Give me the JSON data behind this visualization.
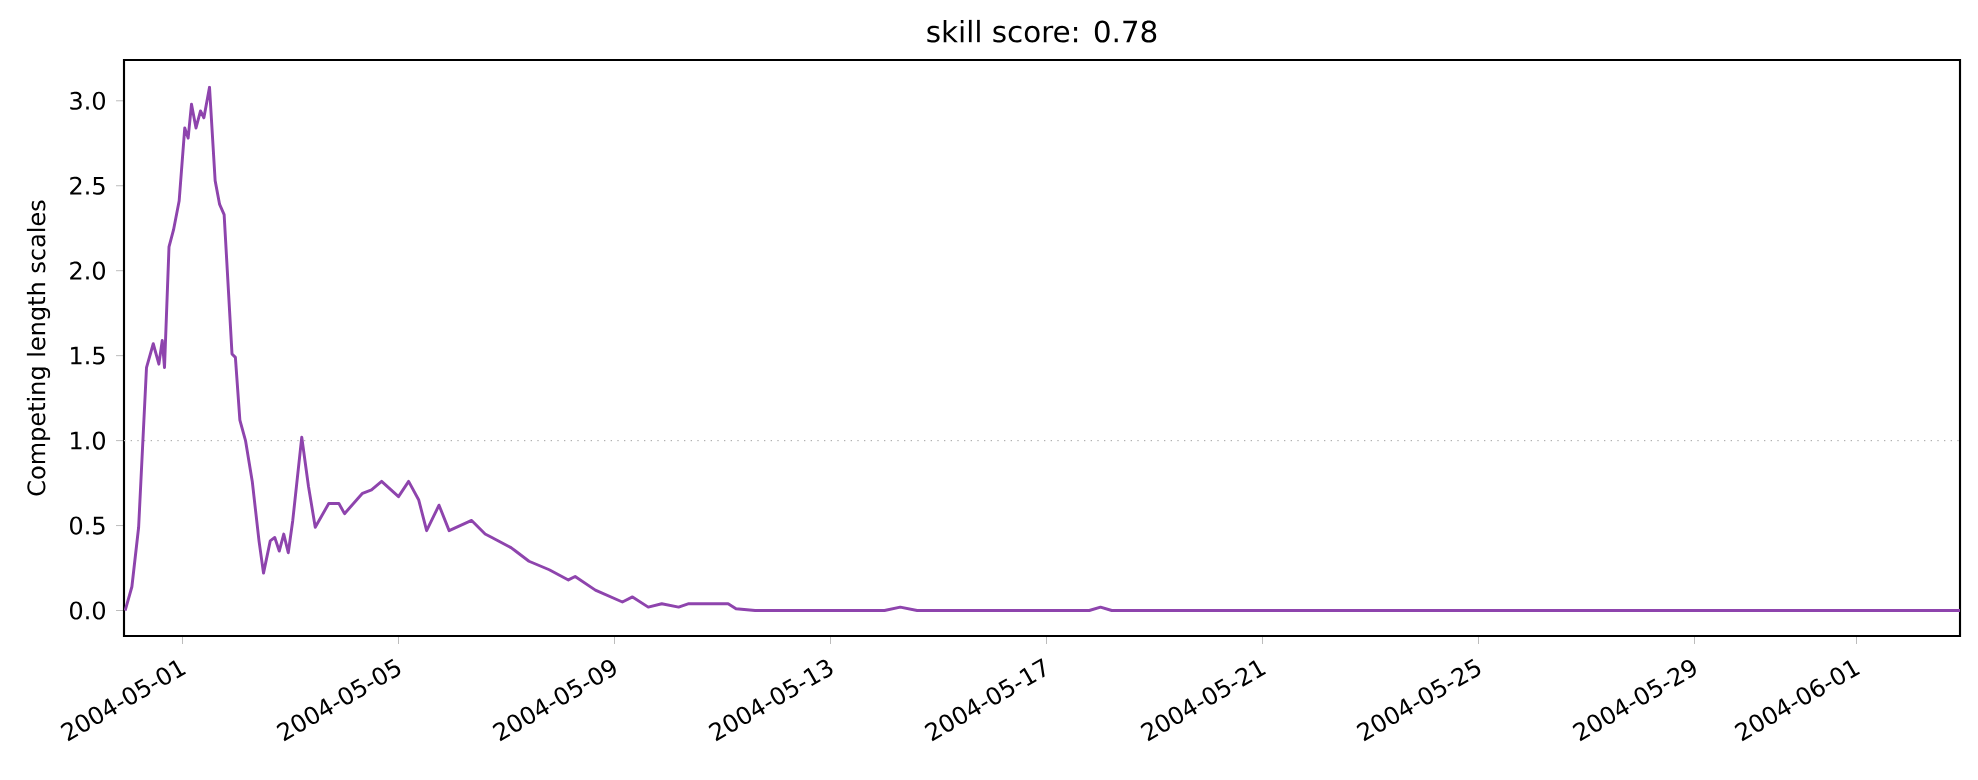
{
  "chart_data": {
    "type": "line",
    "title": "skill score: 0.78",
    "ylabel": "Competing length scales",
    "x": [
      "2004-04-29T22:30",
      "2004-04-30T01:30",
      "2004-04-30T04:30",
      "2004-04-30T08:00",
      "2004-04-30T11:00",
      "2004-04-30T13:30",
      "2004-04-30T15:00",
      "2004-04-30T16:00",
      "2004-04-30T18:00",
      "2004-04-30T20:00",
      "2004-04-30T22:30",
      "2004-05-01T01:00",
      "2004-05-01T02:30",
      "2004-05-01T04:00",
      "2004-05-01T06:00",
      "2004-05-01T08:00",
      "2004-05-01T09:30",
      "2004-05-01T12:00",
      "2004-05-01T14:30",
      "2004-05-01T16:30",
      "2004-05-01T18:30",
      "2004-05-01T22:00",
      "2004-05-01T23:30",
      "2004-05-02T01:30",
      "2004-05-02T04:00",
      "2004-05-02T07:00",
      "2004-05-02T10:00",
      "2004-05-02T12:00",
      "2004-05-02T15:00",
      "2004-05-02T17:00",
      "2004-05-02T19:00",
      "2004-05-02T21:00",
      "2004-05-02T23:00",
      "2004-05-03T01:00",
      "2004-05-03T05:00",
      "2004-05-03T08:00",
      "2004-05-03T11:00",
      "2004-05-03T17:00",
      "2004-05-03T21:30",
      "2004-05-04T00:00",
      "2004-05-04T08:00",
      "2004-05-04T12:00",
      "2004-05-04T16:30",
      "2004-05-05T00:00",
      "2004-05-05T04:30",
      "2004-05-05T09:00",
      "2004-05-05T12:30",
      "2004-05-05T18:00",
      "2004-05-05T22:30",
      "2004-05-06T08:30",
      "2004-05-06T14:30",
      "2004-05-06T17:30",
      "2004-05-07T02:00",
      "2004-05-07T04:00",
      "2004-05-07T10:00",
      "2004-05-07T19:00",
      "2004-05-08T03:30",
      "2004-05-08T06:30",
      "2004-05-08T15:30",
      "2004-05-09T03:30",
      "2004-05-09T08:00",
      "2004-05-09T15:00",
      "2004-05-09T21:00",
      "2004-05-10T04:30",
      "2004-05-10T09:00",
      "2004-05-11T02:30",
      "2004-05-11T06:00",
      "2004-05-11T14:30",
      "2004-05-14T00:00",
      "2004-05-14T07:00",
      "2004-05-14T14:30",
      "2004-05-17T19:00",
      "2004-05-18T00:00",
      "2004-05-18T05:00",
      "2004-06-02T22:00"
    ],
    "series": [
      {
        "color": "#8e44ad",
        "values": [
          0,
          0.14,
          0.49,
          1.43,
          1.57,
          1.45,
          1.59,
          1.43,
          2.14,
          2.24,
          2.41,
          2.84,
          2.78,
          2.98,
          2.84,
          2.94,
          2.9,
          3.08,
          2.53,
          2.39,
          2.33,
          1.51,
          1.49,
          1.12,
          1.0,
          0.76,
          0.41,
          0.22,
          0.41,
          0.43,
          0.35,
          0.45,
          0.34,
          0.53,
          1.02,
          0.73,
          0.49,
          0.63,
          0.63,
          0.57,
          0.69,
          0.71,
          0.76,
          0.67,
          0.76,
          0.65,
          0.47,
          0.62,
          0.47,
          0.53,
          0.45,
          0.43,
          0.37,
          0.35,
          0.29,
          0.24,
          0.18,
          0.2,
          0.12,
          0.05,
          0.08,
          0.02,
          0.04,
          0.02,
          0.04,
          0.04,
          0.01,
          0,
          0,
          0.02,
          0,
          0,
          0.02,
          0,
          0
        ]
      }
    ],
    "xlim": [
      "2004-04-29T22:00",
      "2004-06-02T22:00"
    ],
    "xticks": [
      "2004-05-01",
      "2004-05-05",
      "2004-05-09",
      "2004-05-13",
      "2004-05-17",
      "2004-05-21",
      "2004-05-25",
      "2004-05-29",
      "2004-06-01"
    ],
    "ylim": [
      -0.15,
      3.24
    ],
    "yticks": [
      {
        "value": 0,
        "label": "0.0"
      },
      {
        "value": 0.5,
        "label": "0.5"
      },
      {
        "value": 1,
        "label": "1.0"
      },
      {
        "value": 1.5,
        "label": "1.5"
      },
      {
        "value": 2,
        "label": "2.0"
      },
      {
        "value": 2.5,
        "label": "2.5"
      },
      {
        "value": 3,
        "label": "3.0"
      }
    ],
    "ref_lines": [
      {
        "axis": "y",
        "value": 1,
        "color": "#b0b0b0",
        "line_style": "dotted"
      }
    ],
    "line_style": "solid"
  }
}
